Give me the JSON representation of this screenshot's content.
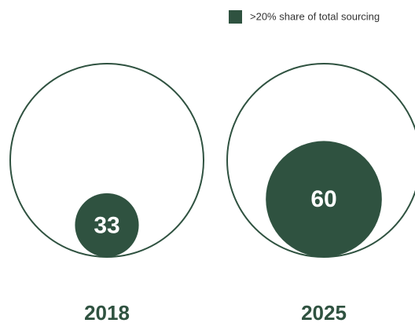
{
  "chart_data": {
    "type": "bubble",
    "legend": ">20% share of total sourcing",
    "categories": [
      "2018",
      "2025"
    ],
    "values": [
      33,
      60
    ],
    "color": "#2f5240",
    "rlim": [
      0,
      100
    ]
  }
}
